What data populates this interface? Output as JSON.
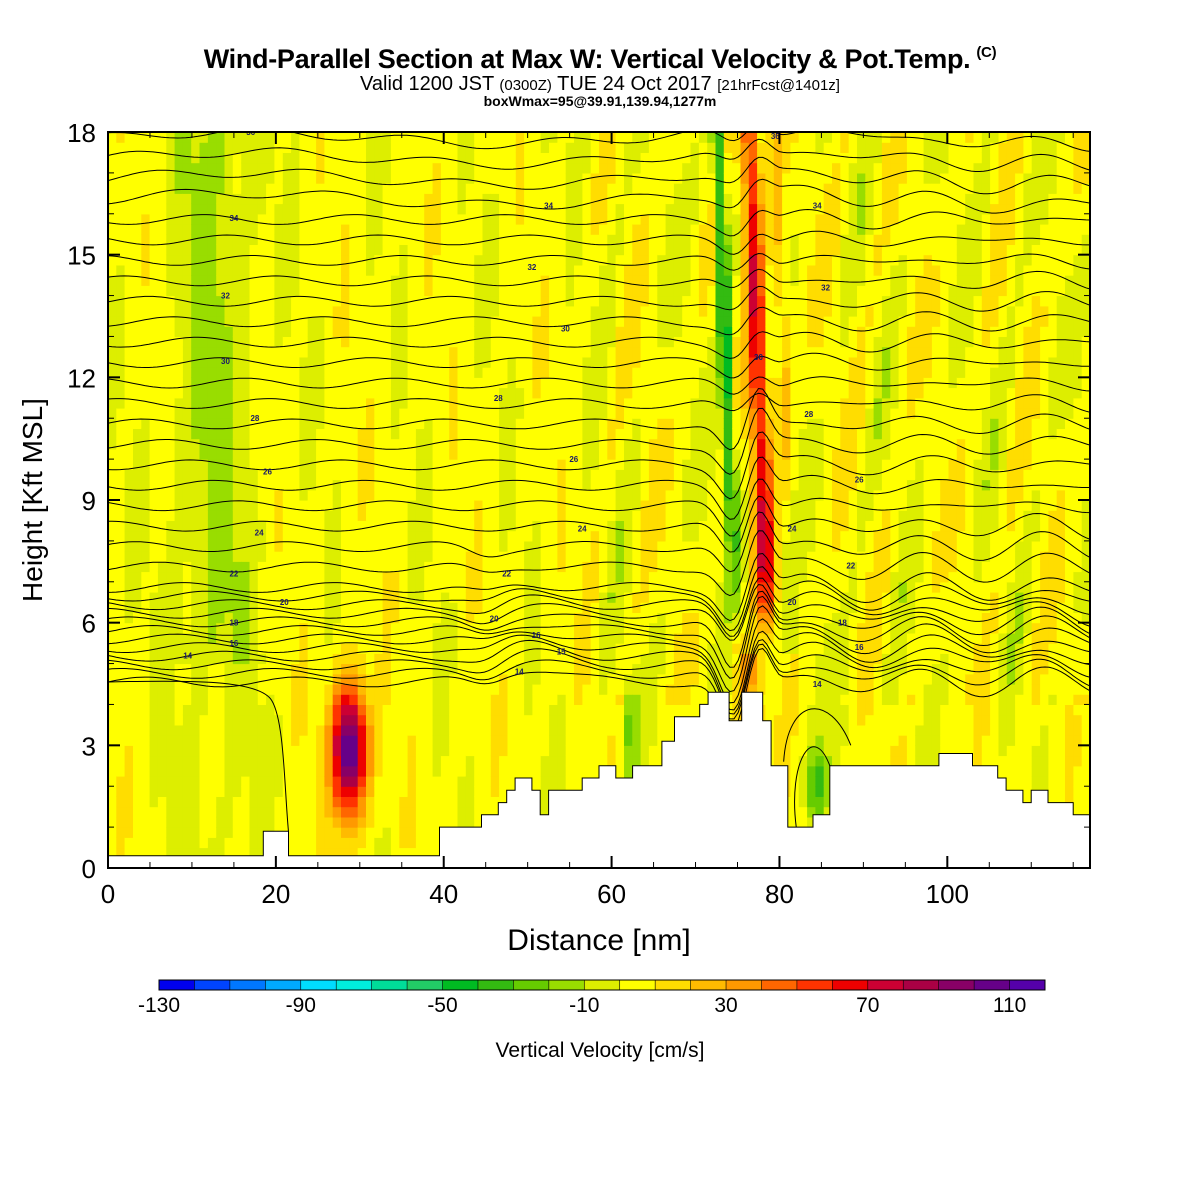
{
  "title": "Wind-Parallel Section at Max W: Vertical Velocity & Pot.Temp.",
  "title_mark": "(C)",
  "subtitle": {
    "lead": "Valid 1200 JST ",
    "small1": "(0300Z)",
    "mid": " TUE 24 Oct 2017 ",
    "small2": "[21hrFcst@1401z]"
  },
  "subline": "boxWmax=95@39.91,139.94,1277m",
  "chart_data": {
    "type": "heatmap",
    "xlabel": "Distance [nm]",
    "ylabel": "Height [Kft MSL]",
    "xlim": [
      0,
      117
    ],
    "ylim": [
      0,
      18
    ],
    "xticks": [
      0,
      20,
      40,
      60,
      80,
      100
    ],
    "yticks": [
      0,
      3,
      6,
      9,
      12,
      15,
      18
    ],
    "colorbar": {
      "label": "Vertical Velocity [cm/s]",
      "levels": [
        -130,
        -120,
        -110,
        -100,
        -90,
        -80,
        -70,
        -60,
        -50,
        -40,
        -30,
        -20,
        -10,
        0,
        10,
        20,
        30,
        40,
        50,
        60,
        70,
        80,
        90,
        100,
        110,
        120
      ],
      "tick_labels": [
        "-130",
        "-90",
        "-50",
        "-10",
        "30",
        "70",
        "110"
      ],
      "colors": [
        "#0000ee",
        "#0044ff",
        "#0077ff",
        "#00aaff",
        "#00ddff",
        "#00eedd",
        "#00dd99",
        "#22cc66",
        "#00bb22",
        "#33bb11",
        "#66cc00",
        "#99dd00",
        "#ddee00",
        "#ffff00",
        "#ffdd00",
        "#ffbb00",
        "#ff9900",
        "#ff6600",
        "#ff3300",
        "#ee0000",
        "#cc0033",
        "#aa0044",
        "#880066",
        "#660088",
        "#5500aa"
      ]
    },
    "terrain": [
      [
        0,
        0.3
      ],
      [
        18.5,
        0.3
      ],
      [
        18.5,
        0.9
      ],
      [
        21.5,
        0.9
      ],
      [
        21.5,
        0.3
      ],
      [
        39.5,
        0.3
      ],
      [
        39.5,
        1.0
      ],
      [
        44.5,
        1.0
      ],
      [
        44.5,
        1.3
      ],
      [
        46.5,
        1.3
      ],
      [
        46.5,
        1.6
      ],
      [
        47.5,
        1.6
      ],
      [
        47.5,
        1.9
      ],
      [
        48.5,
        1.9
      ],
      [
        48.5,
        2.2
      ],
      [
        50.5,
        2.2
      ],
      [
        50.5,
        1.9
      ],
      [
        51.5,
        1.9
      ],
      [
        51.5,
        1.3
      ],
      [
        52.5,
        1.3
      ],
      [
        52.5,
        1.9
      ],
      [
        56.5,
        1.9
      ],
      [
        56.5,
        2.2
      ],
      [
        58.5,
        2.2
      ],
      [
        58.5,
        2.5
      ],
      [
        60.5,
        2.5
      ],
      [
        60.5,
        2.2
      ],
      [
        62.5,
        2.2
      ],
      [
        62.5,
        2.5
      ],
      [
        66.0,
        2.5
      ],
      [
        66.0,
        3.1
      ],
      [
        67.5,
        3.1
      ],
      [
        67.5,
        3.7
      ],
      [
        70.5,
        3.7
      ],
      [
        70.5,
        4.0
      ],
      [
        71.5,
        4.0
      ],
      [
        71.5,
        4.3
      ],
      [
        74.0,
        4.3
      ],
      [
        74.0,
        3.6
      ],
      [
        75.5,
        3.6
      ],
      [
        75.5,
        4.3
      ],
      [
        78.0,
        4.3
      ],
      [
        78.0,
        3.6
      ],
      [
        79.0,
        3.6
      ],
      [
        79.0,
        2.5
      ],
      [
        81.0,
        2.5
      ],
      [
        81.0,
        1.0
      ],
      [
        84.0,
        1.0
      ],
      [
        84.0,
        1.3
      ],
      [
        86.0,
        1.3
      ],
      [
        86.0,
        2.5
      ],
      [
        99.0,
        2.5
      ],
      [
        99.0,
        2.8
      ],
      [
        103.0,
        2.8
      ],
      [
        103.0,
        2.5
      ],
      [
        106.0,
        2.5
      ],
      [
        106.0,
        2.2
      ],
      [
        107.0,
        2.2
      ],
      [
        107.0,
        1.9
      ],
      [
        109.0,
        1.9
      ],
      [
        109.0,
        1.6
      ],
      [
        110.0,
        1.6
      ],
      [
        110.0,
        1.9
      ],
      [
        112.0,
        1.9
      ],
      [
        112.0,
        1.6
      ],
      [
        115.0,
        1.6
      ],
      [
        115.0,
        1.3
      ],
      [
        117,
        1.3
      ]
    ],
    "theta_contour_labels": [
      {
        "x": 9.5,
        "y": 5.2,
        "label": "14"
      },
      {
        "x": 15.0,
        "y": 5.5,
        "label": "16"
      },
      {
        "x": 15.0,
        "y": 6.0,
        "label": "18"
      },
      {
        "x": 21.0,
        "y": 6.5,
        "label": "20"
      },
      {
        "x": 15.0,
        "y": 7.2,
        "label": "22"
      },
      {
        "x": 18.0,
        "y": 8.2,
        "label": "24"
      },
      {
        "x": 19.0,
        "y": 9.7,
        "label": "26"
      },
      {
        "x": 17.5,
        "y": 11.0,
        "label": "28"
      },
      {
        "x": 14.0,
        "y": 12.4,
        "label": "30"
      },
      {
        "x": 14.0,
        "y": 14.0,
        "label": "32"
      },
      {
        "x": 15.0,
        "y": 15.9,
        "label": "34"
      },
      {
        "x": 17.0,
        "y": 18.0,
        "label": "36"
      },
      {
        "x": 49.0,
        "y": 4.8,
        "label": "14"
      },
      {
        "x": 54.0,
        "y": 5.3,
        "label": "15"
      },
      {
        "x": 51.0,
        "y": 5.7,
        "label": "16"
      },
      {
        "x": 46.0,
        "y": 6.1,
        "label": "20"
      },
      {
        "x": 47.5,
        "y": 7.2,
        "label": "22"
      },
      {
        "x": 56.5,
        "y": 8.3,
        "label": "24"
      },
      {
        "x": 55.5,
        "y": 10.0,
        "label": "26"
      },
      {
        "x": 46.5,
        "y": 11.5,
        "label": "28"
      },
      {
        "x": 54.5,
        "y": 13.2,
        "label": "30"
      },
      {
        "x": 50.5,
        "y": 14.7,
        "label": "32"
      },
      {
        "x": 52.5,
        "y": 16.2,
        "label": "34"
      },
      {
        "x": 79.5,
        "y": 17.9,
        "label": "36"
      },
      {
        "x": 84.5,
        "y": 16.2,
        "label": "34"
      },
      {
        "x": 85.5,
        "y": 14.2,
        "label": "32"
      },
      {
        "x": 77.5,
        "y": 12.5,
        "label": "30"
      },
      {
        "x": 83.5,
        "y": 11.1,
        "label": "28"
      },
      {
        "x": 89.5,
        "y": 9.5,
        "label": "26"
      },
      {
        "x": 81.5,
        "y": 8.3,
        "label": "24"
      },
      {
        "x": 88.5,
        "y": 7.4,
        "label": "22"
      },
      {
        "x": 81.5,
        "y": 6.5,
        "label": "20"
      },
      {
        "x": 87.5,
        "y": 6.0,
        "label": "18"
      },
      {
        "x": 89.5,
        "y": 5.4,
        "label": "16"
      },
      {
        "x": 84.5,
        "y": 4.5,
        "label": "14"
      }
    ]
  }
}
